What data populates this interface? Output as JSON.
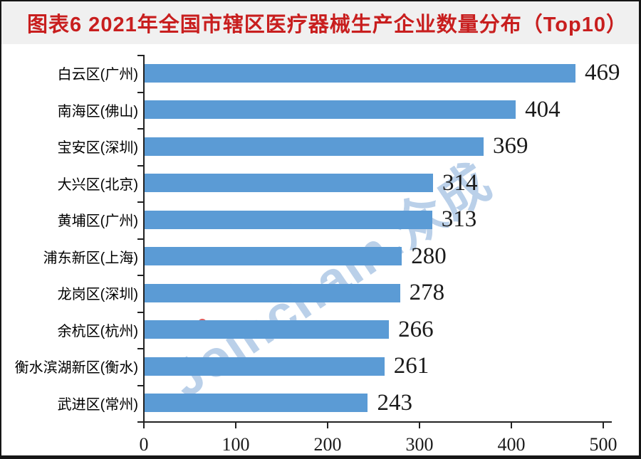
{
  "header": {
    "title": "图表6  2021年全国市辖区医疗器械生产企业数量分布（Top10）"
  },
  "watermark": {
    "text": "Joinchain.众成",
    "dot_color": "#e06060",
    "text_color": "#a9c4e3"
  },
  "colors": {
    "title_red": "#c81e1e",
    "bar_blue": "#5b9bd5",
    "titlebar_bg": "#f0f0f0",
    "axis": "#222222",
    "frame_border": "#161616"
  },
  "chart_data": {
    "type": "bar",
    "orientation": "horizontal",
    "title": "图表6  2021年全国市辖区医疗器械生产企业数量分布（Top10）",
    "categories": [
      "白云区(广州)",
      "南海区(佛山)",
      "宝安区(深圳)",
      "大兴区(北京)",
      "黄埔区(广州)",
      "浦东新区(上海)",
      "龙岗区(深圳)",
      "余杭区(杭州)",
      "衡水滨湖新区(衡水)",
      "武进区(常州)"
    ],
    "values": [
      469,
      404,
      369,
      314,
      313,
      280,
      278,
      266,
      261,
      243
    ],
    "xlabel": "",
    "ylabel": "",
    "xlim": [
      0,
      500
    ],
    "x_ticks": [
      0,
      100,
      200,
      300,
      400,
      500
    ],
    "grid": false,
    "legend": false,
    "value_labels": true,
    "bar_color": "#5b9bd5"
  }
}
